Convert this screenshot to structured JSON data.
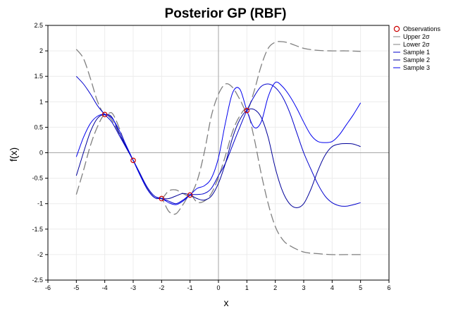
{
  "chart_data": {
    "type": "line",
    "title": "Posterior GP (RBF)",
    "xlabel": "x",
    "ylabel": "f(x)",
    "xlim": [
      -6,
      6
    ],
    "ylim": [
      -2.5,
      2.5
    ],
    "xticks": [
      "-6",
      "-5",
      "-4",
      "-3",
      "-2",
      "-1",
      "0",
      "1",
      "2",
      "3",
      "4",
      "5",
      "6"
    ],
    "yticks": [
      "-2.5",
      "-2",
      "-1.5",
      "-1",
      "-0.5",
      "0",
      "0.5",
      "1",
      "1.5",
      "2",
      "2.5"
    ],
    "grid": true,
    "legend_position": "top-right",
    "observations": {
      "name": "Observations",
      "color": "#cc0000",
      "x": [
        -4,
        -3,
        -2,
        -1,
        1
      ],
      "y": [
        0.75,
        -0.15,
        -0.9,
        -0.83,
        0.83
      ]
    },
    "series": [
      {
        "name": "Upper 2σ",
        "color": "#808080",
        "dash": true,
        "x": [
          -5,
          -4.75,
          -4.5,
          -4.25,
          -4,
          -3.75,
          -3.5,
          -3.25,
          -3,
          -2.75,
          -2.5,
          -2.25,
          -2,
          -1.75,
          -1.5,
          -1.25,
          -1,
          -0.75,
          -0.5,
          -0.25,
          0,
          0.25,
          0.5,
          0.75,
          1,
          1.25,
          1.5,
          1.75,
          2,
          2.25,
          2.5,
          3,
          3.5,
          4,
          4.5,
          5
        ],
        "y": [
          -0.82,
          -0.35,
          0.15,
          0.52,
          0.75,
          0.64,
          0.38,
          0.12,
          -0.15,
          -0.42,
          -0.7,
          -0.88,
          -0.9,
          -0.75,
          -0.73,
          -0.8,
          -0.83,
          -0.55,
          0.0,
          0.72,
          1.15,
          1.35,
          1.28,
          1.05,
          0.83,
          1.2,
          1.7,
          2.05,
          2.17,
          2.18,
          2.15,
          2.05,
          2.01,
          2.0,
          2.0,
          1.99
        ]
      },
      {
        "name": "Lower 2σ",
        "color": "#808080",
        "dash": true,
        "x": [
          -5,
          -4.75,
          -4.5,
          -4.25,
          -4,
          -3.75,
          -3.5,
          -3.25,
          -3,
          -2.75,
          -2.5,
          -2.25,
          -2,
          -1.75,
          -1.5,
          -1.25,
          -1,
          -0.75,
          -0.5,
          -0.25,
          0,
          0.25,
          0.5,
          0.75,
          1,
          1.25,
          1.5,
          1.75,
          2,
          2.25,
          2.5,
          3,
          3.5,
          4,
          4.5,
          5
        ],
        "y": [
          2.03,
          1.85,
          1.45,
          1.0,
          0.75,
          0.78,
          0.5,
          0.12,
          -0.15,
          -0.42,
          -0.7,
          -0.88,
          -0.9,
          -1.15,
          -1.2,
          -1.02,
          -0.83,
          -0.97,
          -0.95,
          -0.8,
          -0.48,
          -0.05,
          0.42,
          0.72,
          0.83,
          0.3,
          -0.4,
          -1.0,
          -1.45,
          -1.7,
          -1.82,
          -1.95,
          -1.98,
          -2.0,
          -2.0,
          -2.0
        ]
      },
      {
        "name": "Sample 1",
        "color": "#0000cc",
        "dash": false,
        "x": [
          -5,
          -4.75,
          -4.5,
          -4.25,
          -4,
          -3.75,
          -3.5,
          -3.25,
          -3,
          -2.75,
          -2.5,
          -2.25,
          -2,
          -1.75,
          -1.5,
          -1.25,
          -1,
          -0.75,
          -0.5,
          -0.25,
          0,
          0.25,
          0.5,
          0.75,
          1,
          1.25,
          1.5,
          1.75,
          2,
          2.25,
          2.5,
          2.75,
          3,
          3.25,
          3.5,
          3.75,
          4,
          4.25,
          4.5,
          4.75,
          5
        ],
        "y": [
          1.5,
          1.35,
          1.15,
          0.92,
          0.75,
          0.6,
          0.35,
          0.1,
          -0.15,
          -0.42,
          -0.68,
          -0.85,
          -0.9,
          -0.95,
          -1.0,
          -0.93,
          -0.83,
          -0.82,
          -0.8,
          -0.7,
          -0.45,
          -0.2,
          0.15,
          0.5,
          0.83,
          1.1,
          1.3,
          1.35,
          1.28,
          1.1,
          0.8,
          0.4,
          0.0,
          -0.32,
          -0.62,
          -0.85,
          -0.98,
          -1.04,
          -1.05,
          -1.02,
          -0.98
        ]
      },
      {
        "name": "Sample 2",
        "color": "#000099",
        "dash": false,
        "x": [
          -5,
          -4.75,
          -4.5,
          -4.25,
          -4,
          -3.75,
          -3.5,
          -3.25,
          -3,
          -2.75,
          -2.5,
          -2.25,
          -2,
          -1.75,
          -1.5,
          -1.25,
          -1,
          -0.75,
          -0.5,
          -0.25,
          0,
          0.25,
          0.5,
          0.75,
          1,
          1.25,
          1.5,
          1.75,
          2,
          2.25,
          2.5,
          2.75,
          3,
          3.25,
          3.5,
          3.75,
          4,
          4.25,
          4.5,
          4.75,
          5
        ],
        "y": [
          -0.45,
          0.0,
          0.42,
          0.68,
          0.75,
          0.7,
          0.4,
          0.12,
          -0.15,
          -0.45,
          -0.72,
          -0.88,
          -0.9,
          -0.9,
          -0.85,
          -0.8,
          -0.83,
          -0.9,
          -0.93,
          -0.85,
          -0.6,
          -0.2,
          0.3,
          0.65,
          0.83,
          0.85,
          0.7,
          0.3,
          -0.3,
          -0.75,
          -1.0,
          -1.08,
          -1.0,
          -0.72,
          -0.35,
          -0.05,
          0.12,
          0.17,
          0.18,
          0.17,
          0.12
        ]
      },
      {
        "name": "Sample 3",
        "color": "#0000ee",
        "dash": false,
        "x": [
          -5,
          -4.75,
          -4.5,
          -4.25,
          -4,
          -3.75,
          -3.5,
          -3.25,
          -3,
          -2.75,
          -2.5,
          -2.25,
          -2,
          -1.75,
          -1.5,
          -1.25,
          -1,
          -0.75,
          -0.5,
          -0.25,
          0,
          0.25,
          0.5,
          0.75,
          1,
          1.25,
          1.5,
          1.75,
          2,
          2.25,
          2.5,
          2.75,
          3,
          3.25,
          3.5,
          3.75,
          4,
          4.25,
          4.5,
          4.75,
          5
        ],
        "y": [
          -0.08,
          0.3,
          0.58,
          0.72,
          0.75,
          0.68,
          0.45,
          0.15,
          -0.15,
          -0.45,
          -0.72,
          -0.88,
          -0.9,
          -0.98,
          -1.02,
          -0.95,
          -0.83,
          -0.7,
          -0.65,
          -0.5,
          -0.1,
          0.6,
          1.18,
          1.25,
          0.83,
          0.5,
          0.6,
          1.1,
          1.38,
          1.3,
          1.12,
          0.88,
          0.6,
          0.35,
          0.22,
          0.2,
          0.22,
          0.35,
          0.55,
          0.75,
          0.98
        ]
      }
    ]
  }
}
